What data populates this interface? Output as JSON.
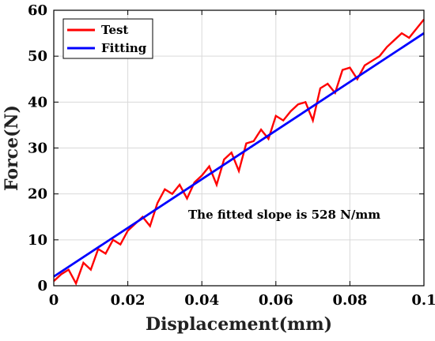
{
  "chart_data": {
    "type": "line",
    "title": "",
    "xlabel": "Displacement(mm)",
    "ylabel": "Force(N)",
    "xlim": [
      0,
      0.1
    ],
    "ylim": [
      0,
      60
    ],
    "x_ticks": [
      0,
      0.02,
      0.04,
      0.06,
      0.08,
      0.1
    ],
    "x_tick_labels": [
      "0",
      "0.02",
      "0.04",
      "0.06",
      "0.08",
      "0.1"
    ],
    "y_ticks": [
      0,
      10,
      20,
      30,
      40,
      50,
      60
    ],
    "y_tick_labels": [
      "0",
      "10",
      "20",
      "30",
      "40",
      "50",
      "60"
    ],
    "grid": true,
    "legend_position": "top-left",
    "annotation": "The fitted slope is 528 N/mm",
    "series": [
      {
        "name": "Test",
        "color": "#ff0000",
        "x": [
          0.0,
          0.002,
          0.004,
          0.006,
          0.008,
          0.01,
          0.012,
          0.014,
          0.016,
          0.018,
          0.02,
          0.022,
          0.024,
          0.026,
          0.028,
          0.03,
          0.032,
          0.034,
          0.036,
          0.038,
          0.04,
          0.042,
          0.044,
          0.046,
          0.048,
          0.05,
          0.052,
          0.054,
          0.056,
          0.058,
          0.06,
          0.062,
          0.064,
          0.066,
          0.068,
          0.07,
          0.072,
          0.074,
          0.076,
          0.078,
          0.08,
          0.082,
          0.084,
          0.086,
          0.088,
          0.09,
          0.092,
          0.094,
          0.096,
          0.098,
          0.1
        ],
        "y": [
          1.0,
          2.5,
          3.5,
          0.5,
          5.0,
          3.5,
          8.0,
          7.0,
          10.0,
          9.0,
          12.0,
          13.5,
          15.0,
          13.0,
          18.0,
          21.0,
          20.0,
          22.0,
          19.0,
          22.5,
          24.0,
          26.0,
          22.0,
          27.5,
          29.0,
          25.0,
          31.0,
          31.5,
          34.0,
          32.0,
          37.0,
          36.0,
          38.0,
          39.5,
          40.0,
          36.0,
          43.0,
          44.0,
          42.0,
          47.0,
          47.5,
          45.0,
          48.0,
          49.0,
          50.0,
          52.0,
          53.5,
          55.0,
          54.0,
          56.0,
          58.0
        ]
      },
      {
        "name": "Fitting",
        "color": "#0000ff",
        "x": [
          0.0,
          0.1
        ],
        "y": [
          2.0,
          55.0
        ]
      }
    ]
  }
}
